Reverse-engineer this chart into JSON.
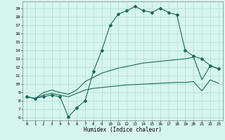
{
  "xlabel": "Humidex (Indice chaleur)",
  "bg_color": "#d6f5ee",
  "grid_color": "#aad8d0",
  "line_color": "#1a6b5a",
  "xlim": [
    -0.5,
    23.5
  ],
  "ylim": [
    5.7,
    19.8
  ],
  "yticks": [
    6,
    7,
    8,
    9,
    10,
    11,
    12,
    13,
    14,
    15,
    16,
    17,
    18,
    19
  ],
  "xticks": [
    0,
    1,
    2,
    3,
    4,
    5,
    6,
    7,
    8,
    9,
    10,
    11,
    12,
    13,
    14,
    15,
    16,
    17,
    18,
    19,
    20,
    21,
    22,
    23
  ],
  "curve1_x": [
    0,
    1,
    2,
    3,
    4,
    5,
    6,
    7,
    8,
    9,
    10,
    11,
    12,
    13,
    14,
    15,
    16,
    17,
    18,
    19,
    20,
    21,
    22,
    23
  ],
  "curve1_y": [
    8.5,
    8.3,
    8.5,
    8.7,
    8.5,
    6.1,
    7.2,
    8.0,
    11.5,
    14.0,
    17.0,
    18.3,
    18.7,
    19.2,
    18.7,
    18.5,
    19.0,
    18.5,
    18.2,
    14.0,
    13.3,
    13.0,
    12.2,
    11.8
  ],
  "curve2_x": [
    0,
    1,
    2,
    3,
    4,
    5,
    6,
    7,
    8,
    9,
    10,
    11,
    12,
    13,
    14,
    15,
    16,
    17,
    18,
    19,
    20,
    21,
    22,
    23
  ],
  "curve2_y": [
    8.5,
    8.3,
    9.0,
    9.3,
    9.0,
    8.8,
    9.3,
    10.3,
    10.8,
    11.3,
    11.6,
    11.9,
    12.1,
    12.3,
    12.5,
    12.6,
    12.7,
    12.8,
    12.9,
    13.0,
    13.2,
    10.5,
    12.2,
    11.8
  ],
  "curve3_x": [
    0,
    1,
    2,
    3,
    4,
    5,
    6,
    7,
    8,
    9,
    10,
    11,
    12,
    13,
    14,
    15,
    16,
    17,
    18,
    19,
    20,
    21,
    22,
    23
  ],
  "curve3_y": [
    8.5,
    8.3,
    8.7,
    8.9,
    8.7,
    8.5,
    8.9,
    9.3,
    9.5,
    9.6,
    9.7,
    9.8,
    9.9,
    9.95,
    10.0,
    10.05,
    10.1,
    10.15,
    10.2,
    10.2,
    10.3,
    9.2,
    10.5,
    10.1
  ]
}
